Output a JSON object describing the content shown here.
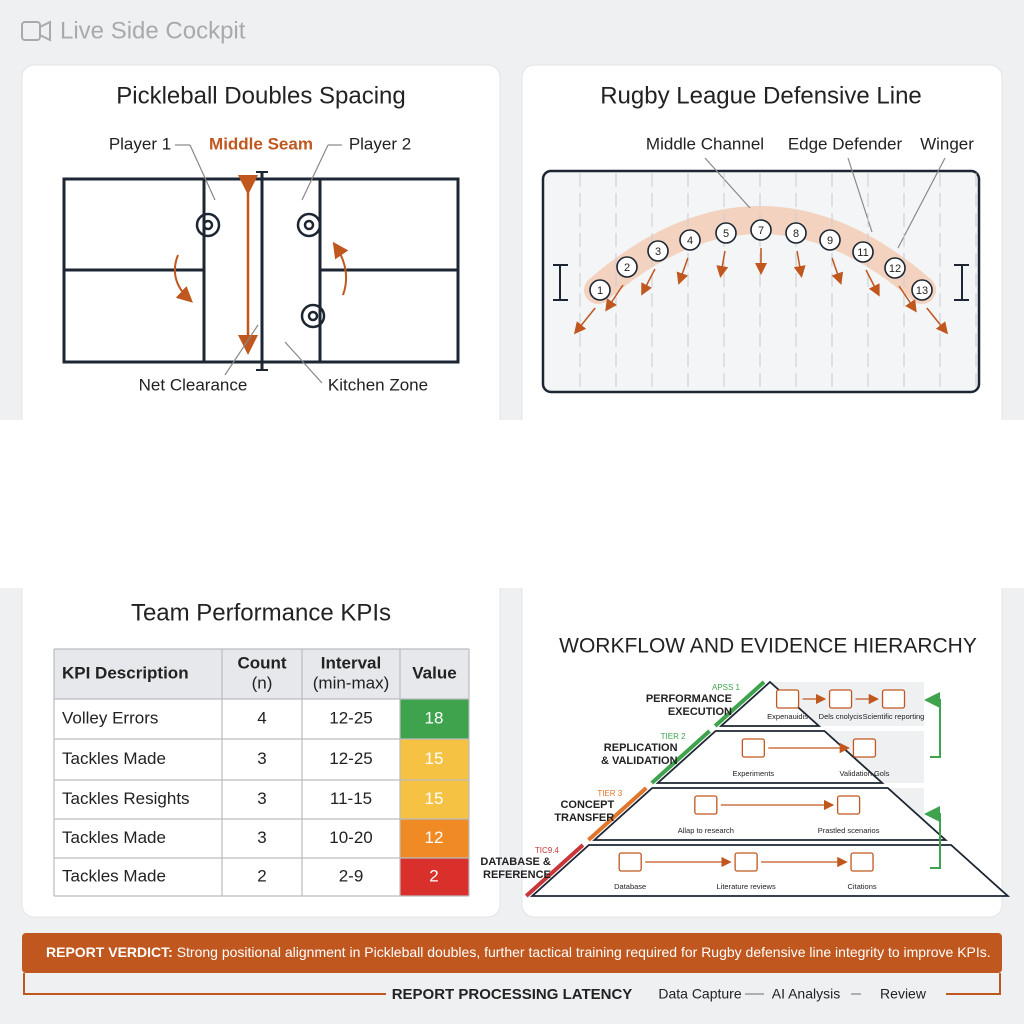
{
  "header": {
    "title": "Live Side Cockpit"
  },
  "pickleball": {
    "title": "Pickleball Doubles Spacing",
    "player1": "Player 1",
    "seam": "Middle Seam",
    "player2": "Player 2",
    "net": "Net Clearance",
    "kitchen": "Kitchen Zone"
  },
  "rugby": {
    "title": "Rugby League Defensive Line",
    "channel": "Middle Channel",
    "edge": "Edge Defender",
    "winger": "Winger",
    "players": [
      1,
      2,
      3,
      4,
      5,
      7,
      8,
      9,
      11,
      12,
      13
    ]
  },
  "kpi": {
    "title": "Team Performance KPIs",
    "headers": [
      [
        "KPI Description"
      ],
      [
        "Count",
        "(n)"
      ],
      [
        "Interval",
        "(min-max)"
      ],
      [
        "Value"
      ]
    ],
    "rows": [
      {
        "kpi": "Volley Errors",
        "count": 4,
        "interval": "12-25",
        "value": 18,
        "color": "#3fa34d"
      },
      {
        "kpi": "Tackles Made",
        "count": 3,
        "interval": "12-25",
        "value": 15,
        "color": "#f6c243"
      },
      {
        "kpi": "Tackles Resights",
        "count": 3,
        "interval": "11-15",
        "value": 15,
        "color": "#f6c243"
      },
      {
        "kpi": "Tackles Made",
        "count": 3,
        "interval": "10-20",
        "value": 12,
        "color": "#f08a24"
      },
      {
        "kpi": "Tackles Made",
        "count": 2,
        "interval": "2-9",
        "value": 2,
        "color": "#d9302c"
      }
    ]
  },
  "workflow": {
    "title": "WORKFLOW AND EVIDENCE HIERARCHY",
    "tiers": [
      {
        "tag": "APSS 1",
        "label": [
          "PERFORMANCE",
          "EXECUTION"
        ],
        "color": "#3fa34d",
        "items": [
          "Expenauidis",
          "Dels cnolycis",
          "Scientific reporting"
        ]
      },
      {
        "tag": "TIER 2",
        "label": [
          "REPLICATION",
          "& VALIDATION"
        ],
        "color": "#3fa34d",
        "items": [
          "Experiments",
          "Validation Gols"
        ]
      },
      {
        "tag": "TIER 3",
        "label": [
          "CONCEPT",
          "TRANSFER"
        ],
        "color": "#e0762c",
        "items": [
          "Allap to research",
          "Prastled scenarios"
        ]
      },
      {
        "tag": "TIC9.4",
        "label": [
          "DATABASE &",
          "REFERENCE"
        ],
        "color": "#c9363a",
        "items": [
          "Database",
          "Literature reviews",
          "Citations"
        ]
      }
    ]
  },
  "verdict": {
    "label": "REPORT VERDICT:",
    "text": "Strong positional alignment in Pickleball doubles, further tactical training required for Rugby defensive line integrity to improve KPIs."
  },
  "latency": {
    "title": "REPORT PROCESSING LATENCY",
    "steps": [
      "Data Capture",
      "AI Analysis",
      "Review"
    ]
  }
}
